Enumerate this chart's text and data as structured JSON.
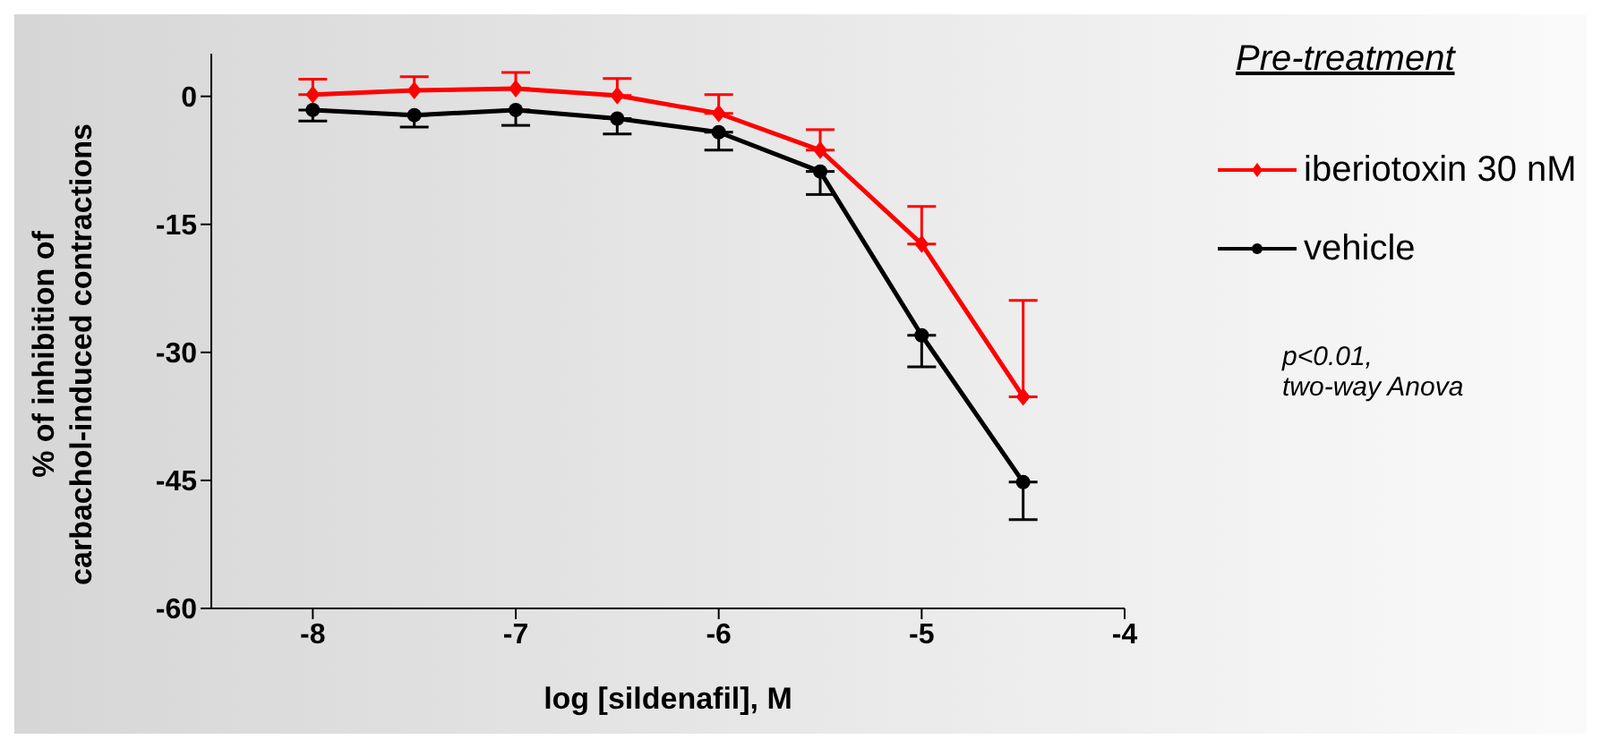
{
  "chart_data": {
    "type": "line",
    "xlabel": "log [sildenafil],  M",
    "ylabel": "% of inhibition of\ncarbachol-induced contractions",
    "legend_title": "Pre-treatment",
    "annotations": [
      "p<0.01,\ntwo-way Anova"
    ],
    "x": [
      -8,
      -7.5,
      -7,
      -6.5,
      -6,
      -5.5,
      -5,
      -4.5
    ],
    "series": [
      {
        "name": "iberiotoxin 30 nM",
        "color": "#ff0000",
        "marker": "diamond",
        "values": [
          0.2,
          0.7,
          0.9,
          0.1,
          -2.0,
          -6.3,
          -17.3,
          -35.2
        ],
        "errors": [
          [
            0.2,
            2.0
          ],
          [
            0.7,
            2.3
          ],
          [
            0.9,
            2.8
          ],
          [
            0.1,
            2.1
          ],
          [
            -2.0,
            0.2
          ],
          [
            -6.3,
            -3.9
          ],
          [
            -17.3,
            -12.9
          ],
          [
            -35.2,
            -23.9
          ]
        ]
      },
      {
        "name": "vehicle",
        "color": "#000000",
        "marker": "circle",
        "values": [
          -1.6,
          -2.2,
          -1.6,
          -2.6,
          -4.2,
          -8.8,
          -28.0,
          -45.2
        ],
        "errors": [
          [
            -2.9,
            -1.6
          ],
          [
            -3.6,
            -2.2
          ],
          [
            -3.4,
            -1.6
          ],
          [
            -4.4,
            -2.6
          ],
          [
            -6.3,
            -4.2
          ],
          [
            -11.5,
            -8.8
          ],
          [
            -31.7,
            -28.0
          ],
          [
            -49.6,
            -45.2
          ]
        ]
      }
    ],
    "xlim": [
      -8.5,
      -4
    ],
    "xticks": [
      -8,
      -7,
      -6,
      -5,
      -4
    ],
    "ylim": [
      -60,
      5
    ],
    "yticks": [
      0,
      -15,
      -30,
      -45,
      -60
    ],
    "grid": false,
    "legend": "right",
    "line_style": "solid"
  }
}
